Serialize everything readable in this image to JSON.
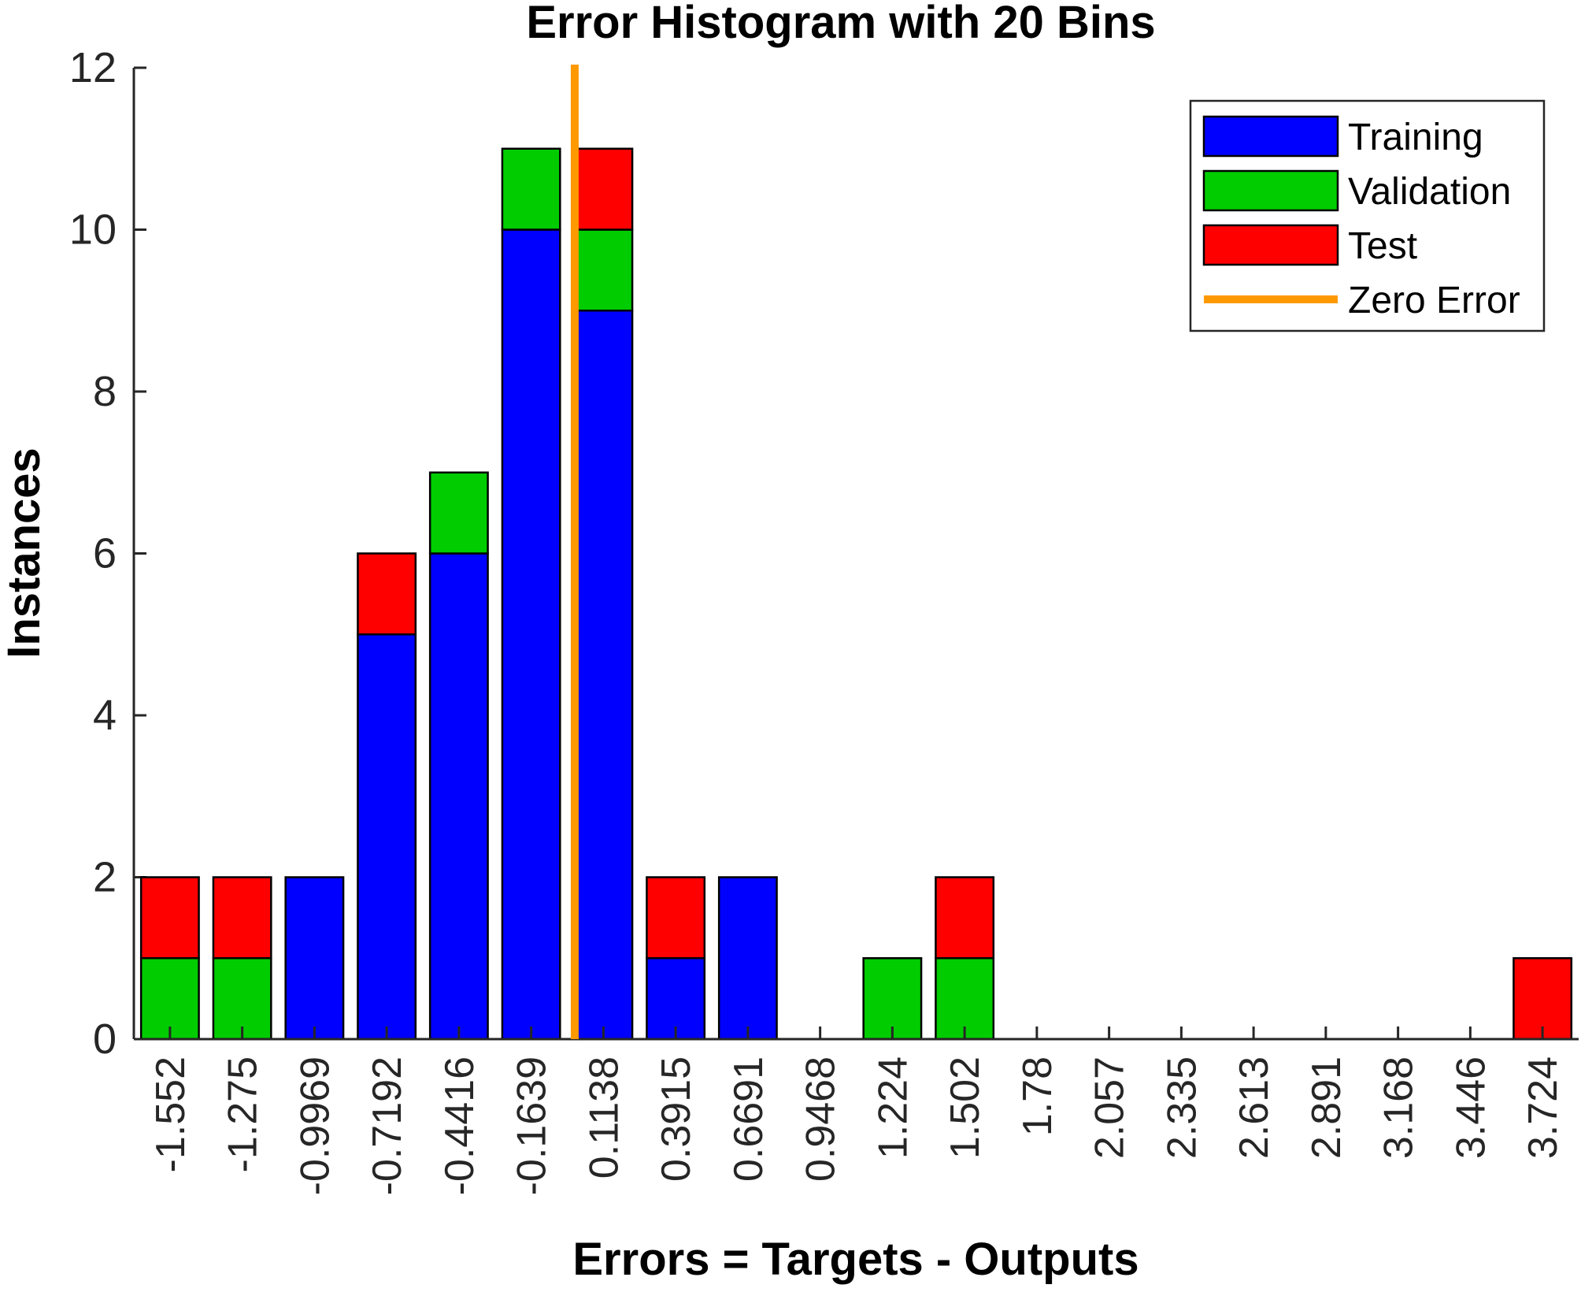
{
  "chart_data": {
    "type": "bar",
    "stacked": true,
    "title": "Error Histogram with 20 Bins",
    "xlabel": "Errors = Targets - Outputs",
    "ylabel": "Instances",
    "ylim": [
      0,
      12
    ],
    "yticks": [
      "0",
      "2",
      "4",
      "6",
      "8",
      "10",
      "12"
    ],
    "categories": [
      "-1.552",
      "-1.275",
      "-0.9969",
      "-0.7192",
      "-0.4416",
      "-0.1639",
      "0.1138",
      "0.3915",
      "0.6691",
      "0.9468",
      "1.224",
      "1.502",
      "1.78",
      "2.057",
      "2.335",
      "2.613",
      "2.891",
      "3.168",
      "3.446",
      "3.724"
    ],
    "series": [
      {
        "name": "Training",
        "color": "#0000FF",
        "values": [
          0,
          0,
          2,
          5,
          6,
          10,
          9,
          1,
          2,
          0,
          0,
          0,
          0,
          0,
          0,
          0,
          0,
          0,
          0,
          0
        ]
      },
      {
        "name": "Validation",
        "color": "#00CC00",
        "values": [
          1,
          1,
          0,
          0,
          1,
          1,
          1,
          0,
          0,
          0,
          1,
          1,
          0,
          0,
          0,
          0,
          0,
          0,
          0,
          0
        ]
      },
      {
        "name": "Test",
        "color": "#FF0000",
        "values": [
          1,
          1,
          0,
          1,
          0,
          0,
          1,
          1,
          0,
          0,
          0,
          1,
          0,
          0,
          0,
          0,
          0,
          0,
          0,
          1
        ]
      }
    ],
    "reference_line": {
      "name": "Zero Error",
      "x": 0,
      "color": "#FF9900"
    },
    "legend": {
      "position": "top-right",
      "entries": [
        "Training",
        "Validation",
        "Test",
        "Zero Error"
      ]
    },
    "grid": false
  }
}
